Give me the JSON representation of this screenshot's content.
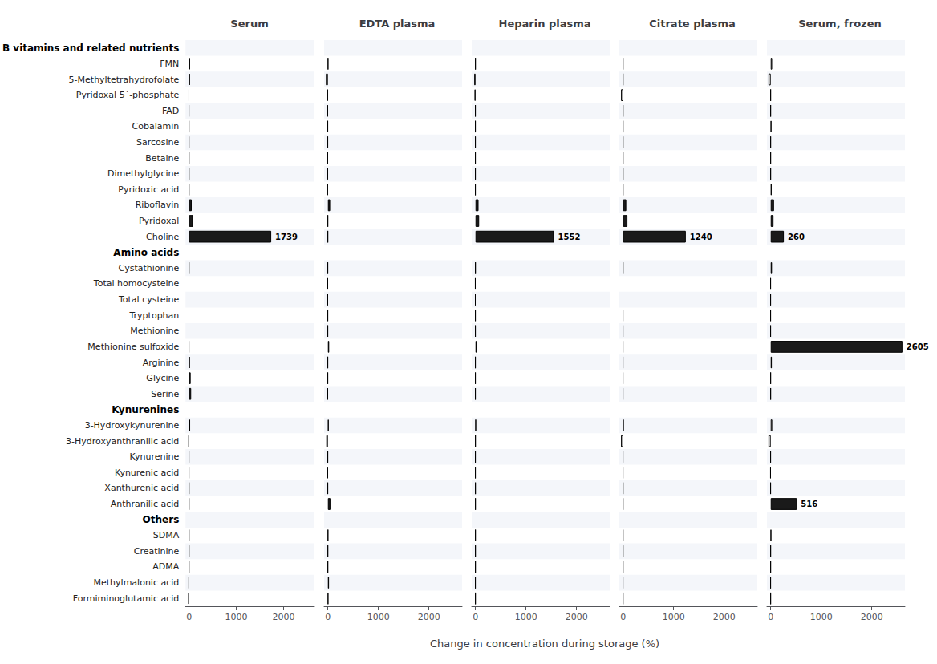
{
  "chart_data": {
    "type": "bar",
    "orientation": "horizontal",
    "xlabel": "Change in concentration during storage (%)",
    "groups": [
      {
        "name": "B vitamins and related nutrients",
        "categories": [
          "FMN",
          "5-Methyltetrahydrofolate",
          "Pyridoxal 5´-phosphate",
          "FAD",
          "Cobalamin",
          "Sarcosine",
          "Betaine",
          "Dimethylglycine",
          "Pyridoxic acid",
          "Riboflavin",
          "Pyridoxal",
          "Choline"
        ]
      },
      {
        "name": "Amino acids",
        "categories": [
          "Cystathionine",
          "Total homocysteine",
          "Total cysteine",
          "Tryptophan",
          "Methionine",
          "Methionine sulfoxide",
          "Arginine",
          "Glycine",
          "Serine"
        ]
      },
      {
        "name": "Kynurenines",
        "categories": [
          "3-Hydroxykynurenine",
          "3-Hydroxyanthranilic acid",
          "Kynurenine",
          "Kynurenic acid",
          "Xanthurenic acid",
          "Anthranilic acid"
        ]
      },
      {
        "name": "Others",
        "categories": [
          "SDMA",
          "Creatinine",
          "ADMA",
          "Methylmalonic acid",
          "Formiminoglutamic acid"
        ]
      }
    ],
    "categories": [
      "FMN",
      "5-Methyltetrahydrofolate",
      "Pyridoxal 5´-phosphate",
      "FAD",
      "Cobalamin",
      "Sarcosine",
      "Betaine",
      "Dimethylglycine",
      "Pyridoxic acid",
      "Riboflavin",
      "Pyridoxal",
      "Choline",
      "Cystathionine",
      "Total homocysteine",
      "Total cysteine",
      "Tryptophan",
      "Methionine",
      "Methionine sulfoxide",
      "Arginine",
      "Glycine",
      "Serine",
      "3-Hydroxykynurenine",
      "3-Hydroxyanthranilic acid",
      "Kynurenine",
      "Kynurenic acid",
      "Xanthurenic acid",
      "Anthranilic acid",
      "SDMA",
      "Creatinine",
      "ADMA",
      "Methylmalonic acid",
      "Formiminoglutamic acid"
    ],
    "colors": [
      "#ffffff",
      "#ffffff",
      "#ffffff",
      "#1a1a1a",
      "#1a1a1a",
      "#1a1a1a",
      "#1a1a1a",
      "#1a1a1a",
      "#1a1a1a",
      "#1a1a1a",
      "#1a1a1a",
      "#1a1a1a",
      "#1a1a1a",
      "#1a1a1a",
      "#1a1a1a",
      "#1a1a1a",
      "#1a1a1a",
      "#1a1a1a",
      "#1a1a1a",
      "#1a1a1a",
      "#1a1a1a",
      "#ffffff",
      "#ffffff",
      "#ffffff",
      "#1a1a1a",
      "#1a1a1a",
      "#1a1a1a",
      "#1a1a1a",
      "#1a1a1a",
      "#1a1a1a",
      "#1a1a1a",
      "#1a1a1a"
    ],
    "series": [
      {
        "name": "Serum",
        "values": [
          20,
          15,
          -8,
          -5,
          -4,
          -4,
          -3,
          -3,
          -3,
          55,
          82,
          1739,
          -3,
          -7,
          -7,
          -7,
          -7,
          -5,
          12,
          33,
          43,
          22,
          -13,
          -5,
          -5,
          -3,
          -3,
          -3,
          -3,
          -3,
          -10,
          -18
        ],
        "value_labels": [
          null,
          null,
          null,
          null,
          null,
          null,
          null,
          null,
          null,
          null,
          null,
          "1739",
          null,
          null,
          null,
          null,
          null,
          null,
          null,
          null,
          null,
          null,
          null,
          null,
          null,
          null,
          null,
          null,
          null,
          null,
          null,
          null
        ]
      },
      {
        "name": "EDTA plasma",
        "values": [
          5,
          -40,
          -12,
          -10,
          -6,
          -6,
          -10,
          -10,
          -13,
          45,
          -3,
          -3,
          -5,
          -8,
          -8,
          -5,
          -5,
          25,
          -5,
          -5,
          -8,
          15,
          -32,
          -5,
          -10,
          -5,
          50,
          3,
          -2,
          -2,
          22,
          5
        ]
      },
      {
        "name": "Heparin plasma",
        "values": [
          -3,
          -25,
          -18,
          -5,
          -5,
          -5,
          -5,
          -5,
          -5,
          60,
          72,
          1552,
          -3,
          -8,
          -7,
          -5,
          -5,
          22,
          -5,
          -5,
          -5,
          8,
          -3,
          -5,
          -5,
          -3,
          -3,
          -3,
          -3,
          -3,
          -5,
          -3
        ],
        "value_labels": [
          null,
          null,
          null,
          null,
          null,
          null,
          null,
          null,
          null,
          null,
          null,
          "1552",
          null,
          null,
          null,
          null,
          null,
          null,
          null,
          null,
          null,
          null,
          null,
          null,
          null,
          null,
          null,
          null,
          null,
          null,
          null,
          null
        ]
      },
      {
        "name": "Citrate plasma",
        "values": [
          -3,
          -3,
          -42,
          -3,
          -3,
          -3,
          -3,
          -3,
          -3,
          62,
          85,
          1240,
          -3,
          -7,
          -7,
          -5,
          -5,
          -5,
          -5,
          -5,
          -5,
          8,
          -42,
          -5,
          -5,
          -3,
          -3,
          -3,
          -3,
          -3,
          -5,
          -3
        ],
        "value_labels": [
          null,
          null,
          null,
          null,
          null,
          null,
          null,
          null,
          null,
          null,
          null,
          "1240",
          null,
          null,
          null,
          null,
          null,
          null,
          null,
          null,
          null,
          null,
          null,
          null,
          null,
          null,
          null,
          null,
          null,
          null,
          null,
          null
        ]
      },
      {
        "name": "Serum, frozen",
        "values": [
          28,
          -45,
          -3,
          -3,
          12,
          -3,
          -3,
          -3,
          18,
          65,
          55,
          260,
          25,
          -5,
          -5,
          -5,
          -5,
          2605,
          22,
          -3,
          -3,
          30,
          -45,
          -5,
          -8,
          -5,
          516,
          8,
          -3,
          -3,
          -5,
          -3
        ],
        "value_labels": [
          null,
          null,
          null,
          null,
          null,
          null,
          null,
          null,
          null,
          null,
          null,
          "260",
          null,
          null,
          null,
          null,
          null,
          "2605",
          null,
          null,
          null,
          null,
          null,
          null,
          null,
          null,
          "516",
          null,
          null,
          null,
          null,
          null
        ]
      }
    ],
    "xlim": [
      -75,
      2655
    ],
    "xticks": [
      0,
      1000,
      2000
    ],
    "grid": false
  }
}
